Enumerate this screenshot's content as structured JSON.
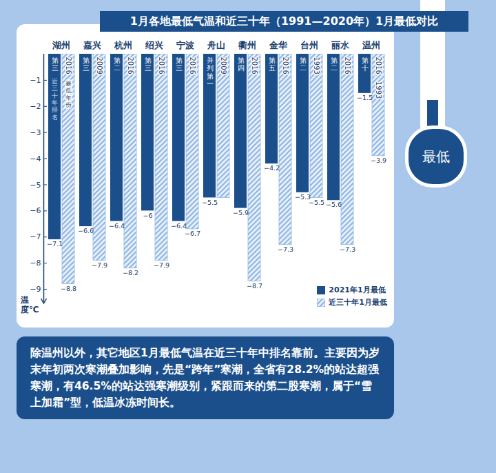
{
  "chart_data": {
    "type": "bar",
    "title": "1月各地最低气温和近三十年（1991—2020年）1月最低对比",
    "badge": "最低",
    "caption": "除温州以外，其它地区1月最低气温在近三十年中排名靠前。主要因为岁末年初两次寒潮叠加影响，先是“跨年”寒潮，全省有28.2%的站达超强寒潮，有46.5%的站达强寒潮级别，紧跟而来的第二股寒潮，属于“雪上加霜”型，低温冰冻时间长。",
    "y_label": "温度℃",
    "categories": [
      "湖州",
      "嘉兴",
      "杭州",
      "绍兴",
      "宁波",
      "舟山",
      "衢州",
      "金华",
      "台州",
      "丽水",
      "温州"
    ],
    "series": [
      {
        "name": "2021年1月最低",
        "color": "#1b4f8c",
        "values": [
          -7.1,
          -6.6,
          -6.4,
          -6,
          -6.4,
          -5.5,
          -5.9,
          -4.2,
          -5.3,
          -5.6,
          -1.5
        ],
        "value_labels": [
          "−7.1",
          "−6.6",
          "−6.4",
          "−6",
          "−6.4",
          "−5.5",
          "−5.9",
          "−4.2",
          "−5.3",
          "−5.6",
          "−1.5"
        ],
        "bar_texts": [
          "第三",
          "第三",
          "第二",
          "第三",
          "第三",
          "并列第一",
          "第四",
          "第五",
          "第二",
          "第二",
          "第十"
        ],
        "bar_text_title": "近三十年排名"
      },
      {
        "name": "近三十年1月最低",
        "color": "#8fb6e6",
        "values": [
          -8.8,
          -7.9,
          -8.2,
          -7.9,
          -6.7,
          -5.5,
          -8.7,
          -7.3,
          -5.5,
          -7.3,
          -3.9
        ],
        "value_labels": [
          "−8.8",
          "−7.9",
          "−8.2",
          "−7.9",
          "−6.7",
          null,
          "−8.7",
          "−7.3",
          "−5.5",
          "−7.3",
          "−3.9"
        ],
        "bar_texts": [
          "2016",
          "2009",
          "2016",
          "2016",
          "2016",
          "2009",
          "2016",
          "2016",
          "1993",
          "2016",
          "2016、1993"
        ],
        "bar_text_title": "最低年份"
      }
    ],
    "ylim": [
      -9.5,
      0
    ],
    "yticks": [
      {
        "value": -1,
        "label": "−1"
      },
      {
        "value": -2,
        "label": "−2"
      },
      {
        "value": -3,
        "label": "−3"
      },
      {
        "value": -4,
        "label": "−4"
      },
      {
        "value": -5,
        "label": "−5"
      },
      {
        "value": -6,
        "label": "−6"
      },
      {
        "value": -7,
        "label": "−7"
      },
      {
        "value": -8,
        "label": "−8"
      },
      {
        "value": -9,
        "label": "−9"
      }
    ],
    "data_labels": true,
    "legend": "lower right",
    "grid": false
  }
}
